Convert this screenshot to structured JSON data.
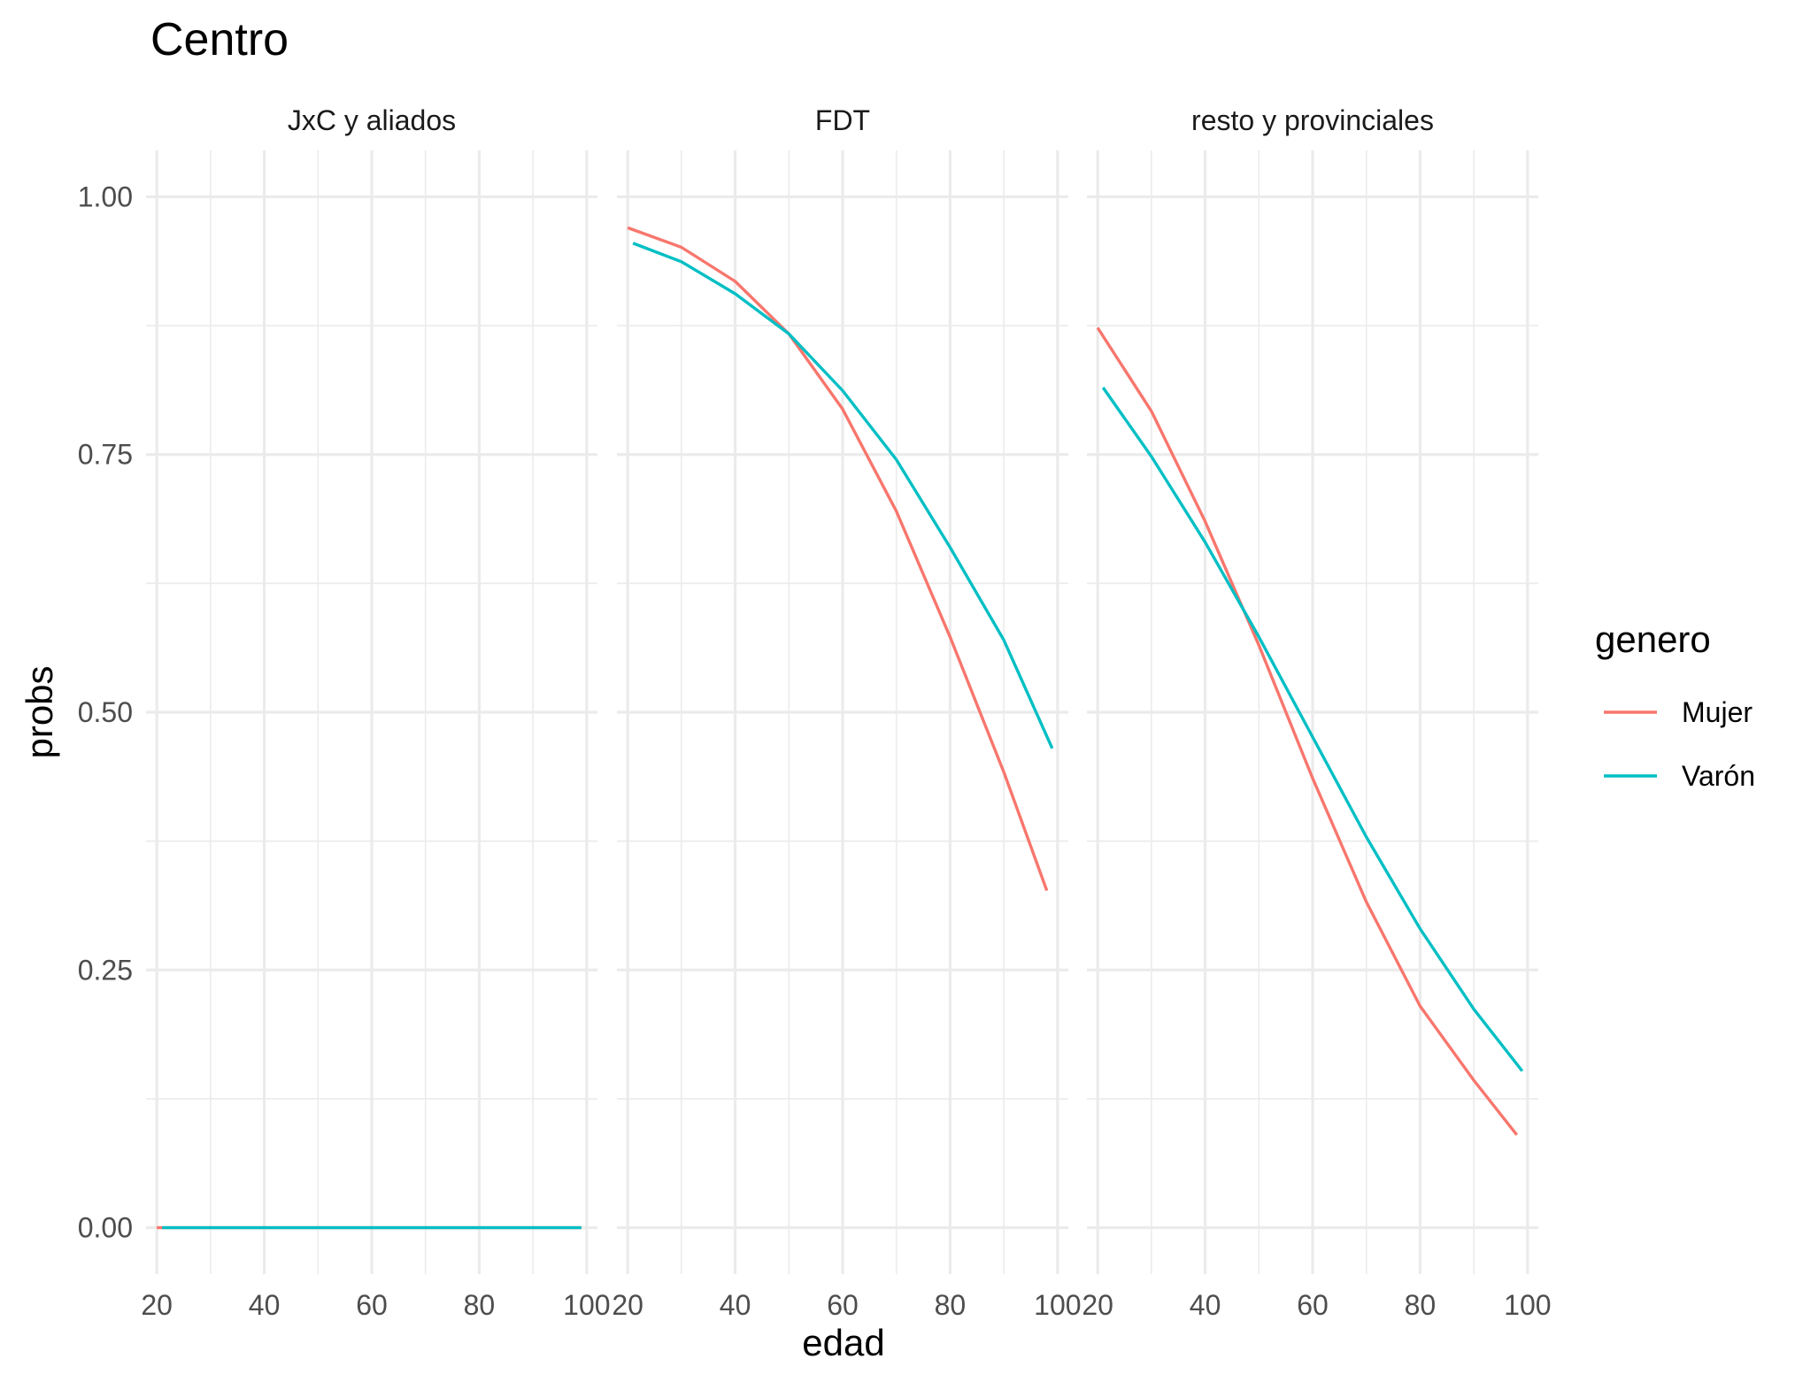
{
  "chart_data": {
    "type": "line",
    "title": "Centro",
    "xlabel": "edad",
    "ylabel": "probs",
    "xlim": [
      18,
      102
    ],
    "ylim": [
      -0.045,
      1.045
    ],
    "x_ticks": [
      20,
      40,
      60,
      80,
      100
    ],
    "y_ticks": [
      0,
      0.25,
      0.5,
      0.75,
      1
    ],
    "x_tick_labels": [
      "20",
      "40",
      "60",
      "80",
      "100"
    ],
    "y_tick_labels": [
      "0.00",
      "0.25",
      "0.50",
      "0.75",
      "1.00"
    ],
    "grid": true,
    "legend": {
      "title": "genero",
      "position": "right",
      "items": [
        {
          "label": "Mujer",
          "color": "#F8766D"
        },
        {
          "label": "Varón",
          "color": "#00BFC4"
        }
      ]
    },
    "panels": [
      {
        "title": "JxC y aliados",
        "series": [
          {
            "name": "Mujer",
            "color": "#F8766D",
            "x": [
              20,
              30,
              40,
              50,
              60,
              70,
              80,
              90,
              99
            ],
            "y": [
              0,
              0,
              0,
              0,
              0,
              0,
              0,
              0,
              0
            ]
          },
          {
            "name": "Varón",
            "color": "#00BFC4",
            "x": [
              21,
              30,
              40,
              50,
              60,
              70,
              80,
              90,
              99
            ],
            "y": [
              0,
              0,
              0,
              0,
              0,
              0,
              0,
              0,
              0
            ]
          }
        ]
      },
      {
        "title": "FDT",
        "series": [
          {
            "name": "Mujer",
            "color": "#F8766D",
            "x": [
              20,
              30,
              40,
              50,
              60,
              70,
              80,
              90,
              98
            ],
            "y": [
              0.97,
              0.951,
              0.918,
              0.867,
              0.794,
              0.695,
              0.573,
              0.442,
              0.327
            ]
          },
          {
            "name": "Varón",
            "color": "#00BFC4",
            "x": [
              21,
              30,
              40,
              50,
              60,
              70,
              80,
              90,
              99
            ],
            "y": [
              0.955,
              0.937,
              0.906,
              0.867,
              0.812,
              0.745,
              0.66,
              0.57,
              0.465
            ]
          }
        ]
      },
      {
        "title": "resto y provinciales",
        "series": [
          {
            "name": "Mujer",
            "color": "#F8766D",
            "x": [
              20,
              30,
              40,
              50,
              60,
              70,
              80,
              90,
              98
            ],
            "y": [
              0.873,
              0.792,
              0.685,
              0.565,
              0.436,
              0.316,
              0.215,
              0.143,
              0.09
            ]
          },
          {
            "name": "Varón",
            "color": "#00BFC4",
            "x": [
              21,
              30,
              40,
              50,
              60,
              70,
              80,
              90,
              99
            ],
            "y": [
              0.815,
              0.748,
              0.665,
              0.573,
              0.476,
              0.379,
              0.29,
              0.212,
              0.152
            ]
          }
        ]
      }
    ]
  }
}
